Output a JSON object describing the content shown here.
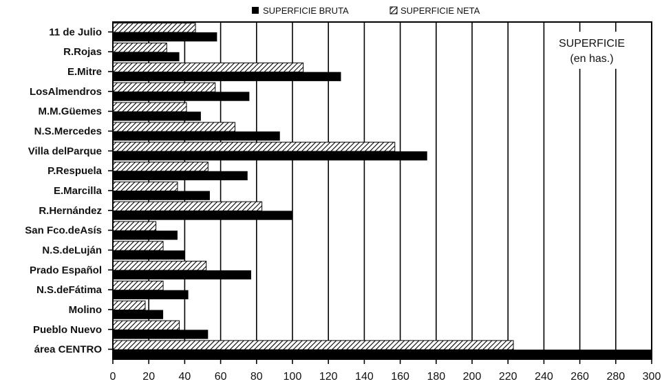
{
  "chart_data": {
    "type": "bar",
    "orientation": "horizontal",
    "categories": [
      "11 de Julio",
      "R.Rojas",
      "E.Mitre",
      "LosAlmendros",
      "M.M.Güemes",
      "N.S.Mercedes",
      "Villa delParque",
      "P.Respuela",
      "E.Marcilla",
      "R.Hernández",
      "San Fco.deAsís",
      "N.S.deLuján",
      "Prado Español",
      "N.S.deFátima",
      "Molino",
      "Pueblo Nuevo",
      "área CENTRO"
    ],
    "series": [
      {
        "name": "SUPERFICIE NETA",
        "pattern": "hatched",
        "values": [
          46,
          30,
          106,
          57,
          41,
          68,
          157,
          53,
          36,
          83,
          24,
          28,
          52,
          28,
          18,
          37,
          223
        ]
      },
      {
        "name": "SUPERFICIE BRUTA",
        "pattern": "solid",
        "values": [
          58,
          37,
          127,
          76,
          49,
          93,
          175,
          75,
          54,
          100,
          36,
          40,
          77,
          42,
          28,
          53,
          300
        ]
      }
    ],
    "xlim": [
      0,
      300
    ],
    "xticks": [
      "0",
      "20",
      "40",
      "60",
      "80",
      "100",
      "120",
      "140",
      "160",
      "180",
      "200",
      "220",
      "240",
      "260",
      "280",
      "300"
    ],
    "annotation": [
      "SUPERFICIE",
      "(en has.)"
    ],
    "legend_position": "top",
    "grid": "vertical",
    "colors": {
      "bar": "#000000",
      "background": "#ffffff"
    }
  }
}
